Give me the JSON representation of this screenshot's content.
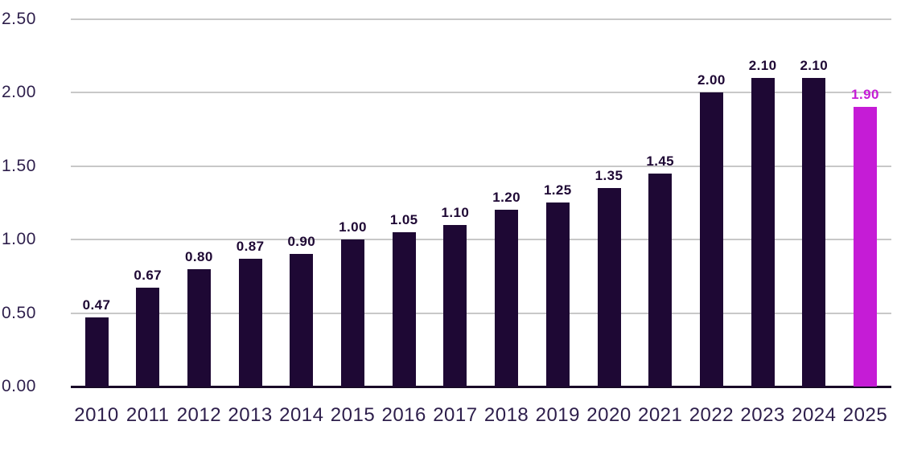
{
  "chart_data": {
    "type": "bar",
    "title": "",
    "xlabel": "",
    "ylabel": "",
    "categories": [
      "2010",
      "2011",
      "2012",
      "2013",
      "2014",
      "2015",
      "2016",
      "2017",
      "2018",
      "2019",
      "2020",
      "2021",
      "2022",
      "2023",
      "2024",
      "2025"
    ],
    "values": [
      0.47,
      0.67,
      0.8,
      0.87,
      0.9,
      1.0,
      1.05,
      1.1,
      1.2,
      1.25,
      1.35,
      1.45,
      2.0,
      2.1,
      2.1,
      1.9
    ],
    "value_labels": [
      "0.47",
      "0.67",
      "0.80",
      "0.87",
      "0.90",
      "1.00",
      "1.05",
      "1.10",
      "1.20",
      "1.25",
      "1.35",
      "1.45",
      "2.00",
      "2.10",
      "2.10",
      "1.90"
    ],
    "highlight_index": 15,
    "ylim": [
      0,
      2.5
    ],
    "y_ticks": [
      "0.00",
      "0.50",
      "1.00",
      "1.50",
      "2.00",
      "2.50"
    ],
    "y_tick_values": [
      0,
      0.5,
      1.0,
      1.5,
      2.0,
      2.5
    ],
    "grid": true,
    "legend": "none",
    "colors": {
      "bar": "#1e0834",
      "highlight_bar": "#c51cd6",
      "value_label": "#1e0834",
      "highlight_value_label": "#c51cd6",
      "tick_label": "#2d1e4b",
      "gridline": "#c8c8c8",
      "axis_line": "#190a28"
    }
  }
}
